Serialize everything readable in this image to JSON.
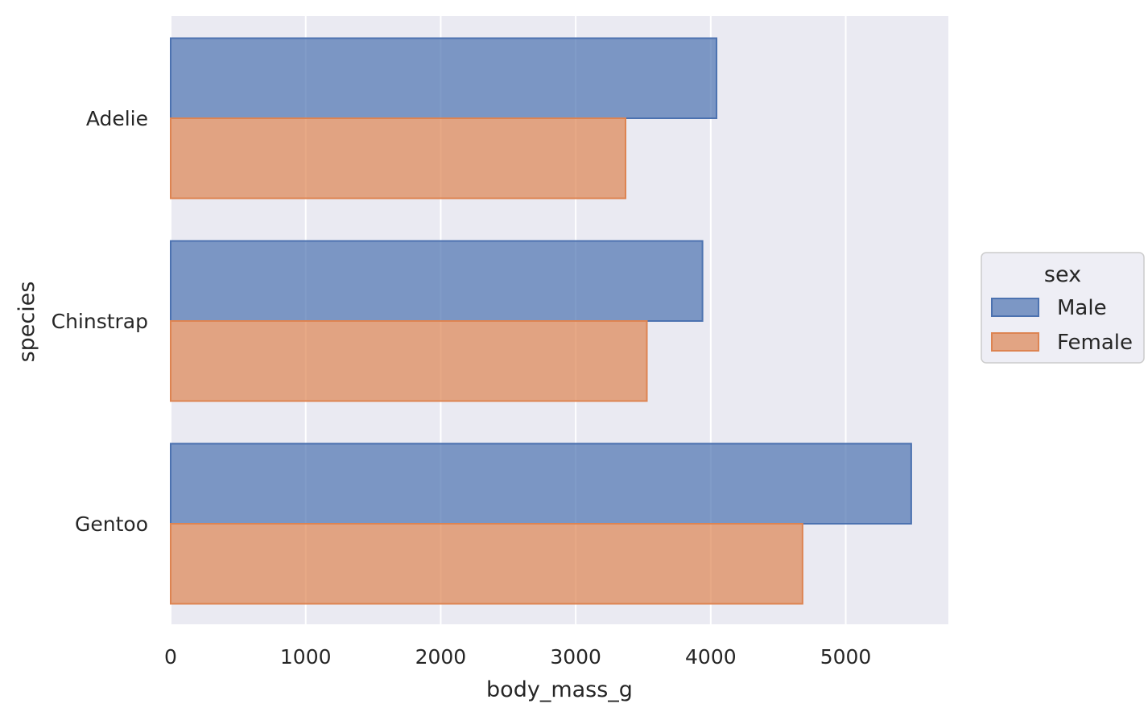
{
  "chart_data": {
    "type": "bar",
    "orientation": "horizontal",
    "categories": [
      "Adelie",
      "Chinstrap",
      "Gentoo"
    ],
    "series": [
      {
        "name": "Male",
        "values": [
          4043,
          3939,
          5485
        ],
        "color": "#4c72b0"
      },
      {
        "name": "Female",
        "values": [
          3369,
          3527,
          4680
        ],
        "color": "#dd8452"
      }
    ],
    "xlabel": "body_mass_g",
    "ylabel": "species",
    "xlim": [
      0,
      5760
    ],
    "xticks": [
      0,
      1000,
      2000,
      3000,
      4000,
      5000
    ],
    "grid": true,
    "background": "#eaeaf2",
    "legend": {
      "title": "sex",
      "placement": "right"
    }
  }
}
